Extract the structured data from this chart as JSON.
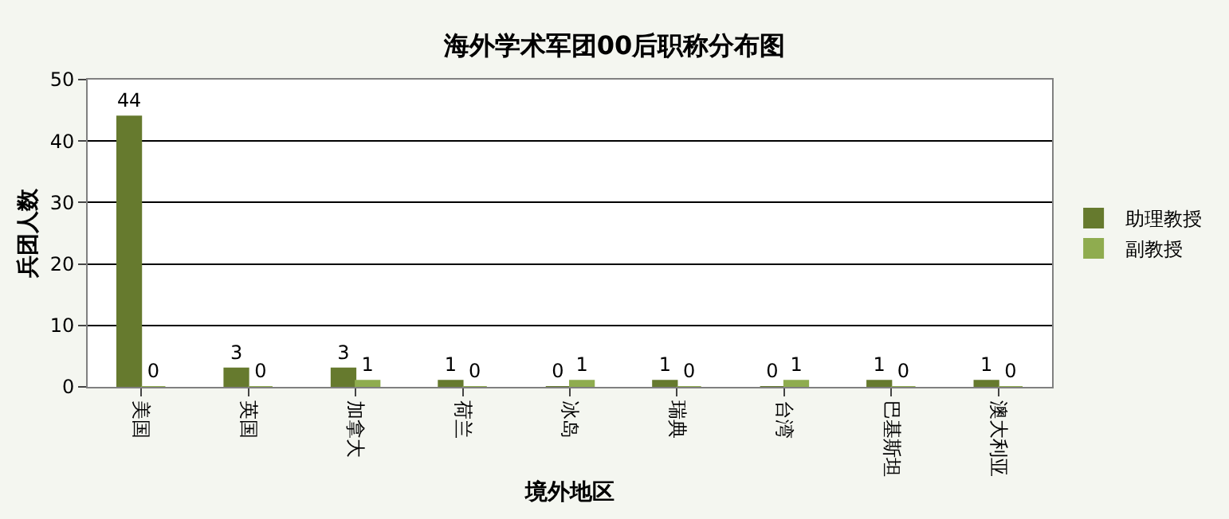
{
  "chart_data": {
    "type": "bar",
    "title": "海外学术军团00后职称分布图",
    "xlabel": "境外地区",
    "ylabel": "兵团人数",
    "categories": [
      "美国",
      "英国",
      "加拿大",
      "荷兰",
      "冰岛",
      "瑞典",
      "台湾",
      "巴基斯坦",
      "澳大利亚"
    ],
    "series": [
      {
        "name": "助理教授",
        "color": "#667a2e",
        "values": [
          44,
          3,
          3,
          1,
          0,
          1,
          0,
          1,
          1
        ]
      },
      {
        "name": "副教授",
        "color": "#8fac4f",
        "values": [
          0,
          0,
          1,
          0,
          1,
          0,
          1,
          0,
          0
        ]
      }
    ],
    "ylim": [
      0,
      50
    ],
    "yticks": [
      0,
      10,
      20,
      30,
      40,
      50
    ],
    "grid": "y",
    "legend": "right",
    "data_labels": true
  }
}
